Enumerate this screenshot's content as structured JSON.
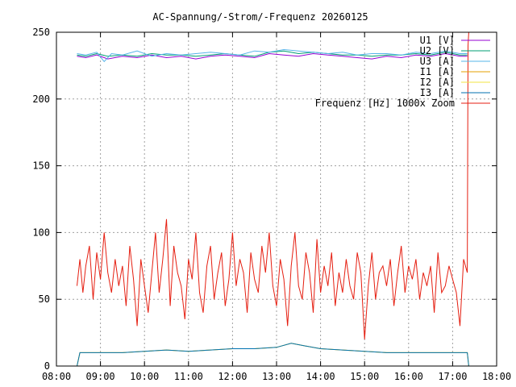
{
  "chart_data": {
    "type": "line",
    "title": "AC-Spannung/-Strom/-Frequenz 20260125",
    "xlabel": "",
    "ylabel": "",
    "x_axis": {
      "type": "time",
      "min": "08:00",
      "max": "18:00",
      "step_hours": 1
    },
    "ylim": [
      0,
      250
    ],
    "y_ticks": [
      0,
      50,
      100,
      150,
      200,
      250
    ],
    "x_ticks": [
      "08:00",
      "09:00",
      "10:00",
      "11:00",
      "12:00",
      "13:00",
      "14:00",
      "15:00",
      "16:00",
      "17:00",
      "18:00"
    ],
    "grid": true,
    "legend": "top-right",
    "series": [
      {
        "name": "U1 [V]",
        "color": "#9400d3",
        "x": [
          "08:28",
          "08:40",
          "08:55",
          "09:10",
          "09:30",
          "09:50",
          "10:10",
          "10:30",
          "10:50",
          "11:10",
          "11:30",
          "11:50",
          "12:10",
          "12:30",
          "12:50",
          "13:10",
          "13:30",
          "13:50",
          "14:10",
          "14:30",
          "14:50",
          "15:10",
          "15:30",
          "15:50",
          "16:10",
          "16:30",
          "16:50",
          "17:10",
          "17:20"
        ],
        "values": [
          232,
          231,
          233,
          230,
          232,
          231,
          233,
          231,
          232,
          230,
          232,
          233,
          232,
          231,
          234,
          233,
          232,
          234,
          233,
          232,
          231,
          230,
          232,
          231,
          233,
          232,
          234,
          232,
          232
        ]
      },
      {
        "name": "U2 [V]",
        "color": "#009e73",
        "x": [
          "08:28",
          "08:40",
          "08:55",
          "09:10",
          "09:30",
          "09:50",
          "10:10",
          "10:30",
          "10:50",
          "11:10",
          "11:30",
          "11:50",
          "12:10",
          "12:30",
          "12:50",
          "13:10",
          "13:30",
          "13:50",
          "14:10",
          "14:30",
          "14:50",
          "15:10",
          "15:30",
          "15:50",
          "16:10",
          "16:30",
          "16:50",
          "17:10",
          "17:20"
        ],
        "values": [
          233,
          232,
          234,
          232,
          233,
          232,
          234,
          233,
          233,
          232,
          233,
          234,
          233,
          232,
          235,
          236,
          234,
          235,
          234,
          233,
          233,
          232,
          233,
          233,
          234,
          233,
          235,
          233,
          233
        ]
      },
      {
        "name": "U3 [A]",
        "color": "#56b4e9",
        "x": [
          "08:28",
          "08:40",
          "08:55",
          "09:05",
          "09:15",
          "09:30",
          "09:50",
          "10:10",
          "10:30",
          "10:50",
          "11:10",
          "11:30",
          "11:50",
          "12:10",
          "12:30",
          "12:50",
          "13:10",
          "13:30",
          "13:50",
          "14:10",
          "14:30",
          "14:50",
          "15:10",
          "15:30",
          "15:50",
          "16:10",
          "16:30",
          "16:50",
          "17:10",
          "17:20"
        ],
        "values": [
          234,
          233,
          235,
          228,
          234,
          233,
          236,
          232,
          234,
          233,
          234,
          235,
          234,
          233,
          236,
          235,
          237,
          236,
          235,
          234,
          235,
          233,
          234,
          234,
          233,
          235,
          234,
          236,
          234,
          234
        ]
      },
      {
        "name": "I1 [A]",
        "color": "#e69f00",
        "x": [
          "08:28",
          "08:32",
          "08:40",
          "09:00",
          "09:30",
          "10:00",
          "10:30",
          "11:00",
          "11:30",
          "12:00",
          "12:30",
          "13:00",
          "13:20",
          "13:40",
          "14:00",
          "14:30",
          "15:00",
          "15:30",
          "16:00",
          "16:30",
          "17:00",
          "17:20",
          "17:22"
        ],
        "values": [
          0,
          10,
          10,
          10,
          10,
          11,
          12,
          11,
          12,
          13,
          13,
          14,
          17,
          15,
          13,
          12,
          11,
          10,
          10,
          10,
          10,
          10,
          0
        ]
      },
      {
        "name": "I2 [A]",
        "color": "#f0e442",
        "x": [
          "08:28",
          "08:32",
          "08:40",
          "09:00",
          "09:30",
          "10:00",
          "10:30",
          "11:00",
          "11:30",
          "12:00",
          "12:30",
          "13:00",
          "13:20",
          "13:40",
          "14:00",
          "14:30",
          "15:00",
          "15:30",
          "16:00",
          "16:30",
          "17:00",
          "17:20",
          "17:22"
        ],
        "values": [
          0,
          10,
          10,
          10,
          10,
          11,
          12,
          11,
          12,
          13,
          13,
          14,
          17,
          15,
          13,
          12,
          11,
          10,
          10,
          10,
          10,
          10,
          0
        ]
      },
      {
        "name": "I3 [A]",
        "color": "#0072b2",
        "x": [
          "08:28",
          "08:32",
          "08:40",
          "09:00",
          "09:30",
          "10:00",
          "10:30",
          "11:00",
          "11:30",
          "12:00",
          "12:30",
          "13:00",
          "13:20",
          "13:40",
          "14:00",
          "14:30",
          "15:00",
          "15:30",
          "16:00",
          "16:30",
          "17:00",
          "17:20",
          "17:22"
        ],
        "values": [
          0,
          10,
          10,
          10,
          10,
          11,
          12,
          11,
          12,
          13,
          13,
          14,
          17,
          15,
          13,
          12,
          11,
          10,
          10,
          10,
          10,
          10,
          0
        ]
      },
      {
        "name": "Frequenz [Hz] 1000x Zoom",
        "color": "#e51e10",
        "x": [
          "08:28",
          "08:32",
          "08:36",
          "08:40",
          "08:45",
          "08:50",
          "08:55",
          "09:00",
          "09:05",
          "09:10",
          "09:15",
          "09:20",
          "09:25",
          "09:30",
          "09:35",
          "09:40",
          "09:45",
          "09:50",
          "09:55",
          "10:00",
          "10:05",
          "10:10",
          "10:15",
          "10:20",
          "10:25",
          "10:30",
          "10:35",
          "10:40",
          "10:45",
          "10:50",
          "10:55",
          "11:00",
          "11:05",
          "11:10",
          "11:15",
          "11:20",
          "11:25",
          "11:30",
          "11:35",
          "11:40",
          "11:45",
          "11:50",
          "11:55",
          "12:00",
          "12:05",
          "12:10",
          "12:15",
          "12:20",
          "12:25",
          "12:30",
          "12:35",
          "12:40",
          "12:45",
          "12:50",
          "12:55",
          "13:00",
          "13:05",
          "13:10",
          "13:15",
          "13:20",
          "13:25",
          "13:30",
          "13:35",
          "13:40",
          "13:45",
          "13:50",
          "13:55",
          "14:00",
          "14:05",
          "14:10",
          "14:15",
          "14:20",
          "14:25",
          "14:30",
          "14:35",
          "14:40",
          "14:45",
          "14:50",
          "14:55",
          "15:00",
          "15:05",
          "15:10",
          "15:15",
          "15:20",
          "15:25",
          "15:30",
          "15:35",
          "15:40",
          "15:45",
          "15:50",
          "15:55",
          "16:00",
          "16:05",
          "16:10",
          "16:15",
          "16:20",
          "16:25",
          "16:30",
          "16:35",
          "16:40",
          "16:45",
          "16:50",
          "16:55",
          "17:00",
          "17:05",
          "17:10",
          "17:15",
          "17:20",
          "17:21",
          "17:22"
        ],
        "values": [
          60,
          80,
          55,
          75,
          90,
          50,
          85,
          65,
          100,
          70,
          55,
          80,
          60,
          75,
          45,
          90,
          65,
          30,
          80,
          60,
          40,
          70,
          100,
          55,
          80,
          110,
          45,
          90,
          70,
          60,
          35,
          80,
          65,
          100,
          55,
          40,
          75,
          90,
          50,
          70,
          85,
          45,
          65,
          100,
          60,
          80,
          70,
          40,
          85,
          65,
          55,
          90,
          70,
          100,
          60,
          45,
          80,
          65,
          30,
          75,
          100,
          60,
          50,
          85,
          70,
          40,
          95,
          55,
          75,
          60,
          85,
          45,
          70,
          55,
          80,
          60,
          50,
          85,
          70,
          20,
          60,
          85,
          50,
          70,
          75,
          60,
          80,
          45,
          70,
          90,
          55,
          75,
          65,
          80,
          50,
          70,
          60,
          75,
          40,
          85,
          55,
          60,
          75,
          65,
          55,
          30,
          80,
          70,
          240,
          250
        ]
      }
    ]
  }
}
